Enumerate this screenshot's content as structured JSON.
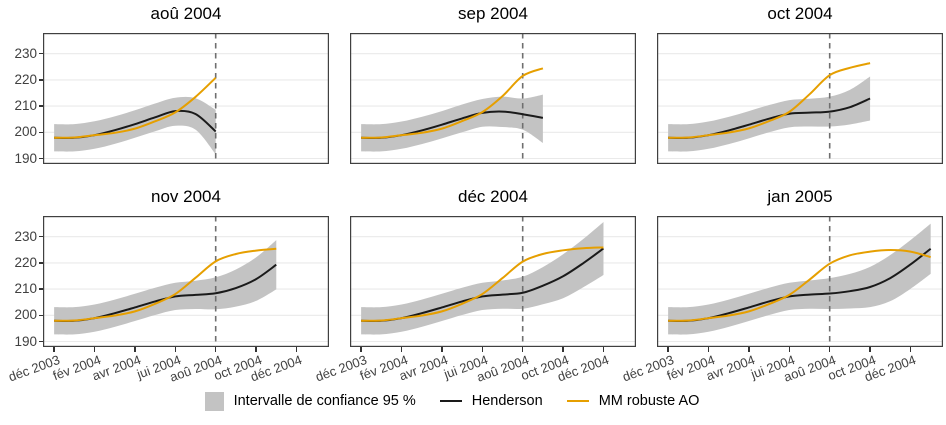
{
  "figure": {
    "description": "Faceted time-series chart comparing Henderson trend estimates with robust MM AO estimates and a 95% confidence band, estimated at six successive dates",
    "facet_titles": [
      "aoû 2004",
      "sep 2004",
      "oct 2004",
      "nov 2004",
      "déc 2004",
      "jan 2005"
    ]
  },
  "legend": {
    "ci_label": "Intervalle de confiance 95 %",
    "henderson_label": "Henderson",
    "mm_label": "MM robuste AO"
  },
  "colors": {
    "henderson": "#1A1A1A",
    "mm_robuste_ao": "#E69F00",
    "ci_band": "#C3C3C3",
    "vline": "#6F6F6F",
    "grid": "#EAEAEA",
    "panel_border": "#404040",
    "axis_text": "#404040",
    "tick_mark": "#333333",
    "title_text": "#000000",
    "background": "#FFFFFF"
  },
  "chart_data": {
    "type": "line",
    "facet_layout": "2 rows x 3 columns",
    "x_unit": "monthly points, month 0 = déc 2003",
    "x_tick_labels": [
      "déc 2003",
      "fév 2004",
      "avr 2004",
      "jui 2004",
      "aoû 2004",
      "oct 2004",
      "déc 2004"
    ],
    "x_tick_month_index": [
      0,
      2,
      4,
      6,
      8,
      10,
      12
    ],
    "y_ticks": [
      190,
      200,
      210,
      220,
      230
    ],
    "y_tick_labels": [
      "190",
      "200",
      "210",
      "220",
      "230"
    ],
    "ylim": [
      187.9,
      237.9
    ],
    "xlim": [
      -0.55,
      13.61
    ],
    "grid": "horizontal major gridlines only",
    "legend_position": "bottom center",
    "vline_month_index": 8,
    "vline_style": "dashed vertical reference line at aoû 2004",
    "facets": [
      {
        "title": "aoû 2004",
        "henderson": [
          197.9,
          197.9,
          198.9,
          200.8,
          203.1,
          205.7,
          208.1,
          207.0,
          200.3
        ],
        "ci_lower": [
          192.7,
          192.7,
          193.7,
          195.6,
          197.9,
          200.4,
          202.5,
          201.0,
          191.6
        ],
        "ci_upper": [
          203.1,
          203.1,
          204.2,
          206.1,
          208.4,
          211.0,
          213.2,
          213.0,
          208.6
        ],
        "mm_robuste_ao": [
          197.9,
          198.0,
          198.9,
          199.8,
          201.4,
          204.2,
          207.6,
          213.5,
          220.8
        ]
      },
      {
        "title": "sep 2004",
        "henderson": [
          197.9,
          197.9,
          198.9,
          200.7,
          202.9,
          205.3,
          207.4,
          207.9,
          206.9,
          205.5
        ],
        "ci_lower": [
          192.7,
          192.7,
          193.7,
          195.5,
          197.7,
          200.0,
          202.1,
          202.0,
          201.0,
          195.9
        ],
        "ci_upper": [
          203.1,
          203.1,
          204.1,
          205.9,
          208.1,
          210.6,
          212.7,
          213.6,
          212.9,
          214.4
        ],
        "mm_robuste_ao": [
          197.9,
          198.0,
          198.9,
          199.8,
          201.4,
          204.3,
          207.7,
          213.8,
          221.5,
          224.4
        ]
      },
      {
        "title": "oct 2004",
        "henderson": [
          197.9,
          197.9,
          198.9,
          200.7,
          202.9,
          205.2,
          207.1,
          207.5,
          207.9,
          209.6,
          212.9
        ],
        "ci_lower": [
          192.7,
          192.7,
          193.7,
          195.5,
          197.7,
          200.0,
          201.9,
          202.2,
          202.2,
          203.0,
          204.5
        ],
        "ci_upper": [
          203.1,
          203.1,
          204.1,
          205.9,
          208.1,
          210.4,
          212.3,
          212.8,
          213.6,
          216.2,
          221.3
        ],
        "mm_robuste_ao": [
          197.9,
          198.0,
          198.9,
          199.9,
          201.5,
          204.3,
          207.8,
          214.5,
          221.8,
          224.6,
          226.4
        ]
      },
      {
        "title": "nov 2004",
        "henderson": [
          197.9,
          197.9,
          198.9,
          200.8,
          203.0,
          205.3,
          207.2,
          207.8,
          208.4,
          210.4,
          213.8,
          219.3
        ],
        "ci_lower": [
          192.7,
          192.7,
          193.7,
          195.6,
          197.8,
          200.1,
          202.0,
          202.4,
          202.3,
          203.3,
          205.5,
          209.9
        ],
        "ci_upper": [
          203.1,
          203.1,
          204.1,
          206.0,
          208.2,
          210.5,
          212.4,
          213.2,
          214.5,
          217.5,
          222.1,
          228.7
        ],
        "mm_robuste_ao": [
          197.9,
          198.0,
          198.9,
          199.9,
          201.5,
          204.4,
          208.1,
          214.3,
          220.6,
          223.4,
          224.7,
          225.4
        ]
      },
      {
        "title": "déc 2004",
        "henderson": [
          197.9,
          197.9,
          198.9,
          200.8,
          203.0,
          205.3,
          207.2,
          207.9,
          208.6,
          211.3,
          214.9,
          219.9,
          225.5
        ],
        "ci_lower": [
          192.7,
          192.7,
          193.7,
          195.6,
          197.8,
          200.1,
          202.0,
          202.5,
          202.5,
          204.2,
          206.5,
          210.7,
          215.4
        ],
        "ci_upper": [
          203.1,
          203.1,
          204.1,
          206.0,
          208.2,
          210.5,
          212.4,
          213.3,
          214.7,
          218.4,
          223.3,
          229.1,
          235.6
        ],
        "mm_robuste_ao": [
          197.9,
          198.0,
          198.9,
          199.9,
          201.5,
          204.4,
          208.1,
          214.2,
          220.5,
          223.4,
          224.8,
          225.6,
          225.9
        ]
      },
      {
        "title": "jan 2005",
        "henderson": [
          197.9,
          197.9,
          198.9,
          200.8,
          203.0,
          205.3,
          207.2,
          207.9,
          208.3,
          209.2,
          210.8,
          214.2,
          219.4,
          225.4
        ],
        "ci_lower": [
          192.7,
          192.7,
          193.7,
          195.6,
          197.8,
          200.1,
          202.0,
          202.5,
          202.4,
          202.6,
          203.1,
          205.4,
          210.1,
          215.8
        ],
        "ci_upper": [
          203.1,
          203.1,
          204.1,
          206.0,
          208.2,
          210.5,
          212.4,
          213.3,
          214.2,
          215.8,
          218.5,
          223.0,
          228.7,
          235.0
        ],
        "mm_robuste_ao": [
          197.9,
          198.0,
          198.9,
          199.9,
          201.5,
          204.3,
          207.8,
          213.6,
          219.7,
          222.9,
          224.3,
          224.9,
          224.3,
          222.2
        ]
      }
    ]
  }
}
